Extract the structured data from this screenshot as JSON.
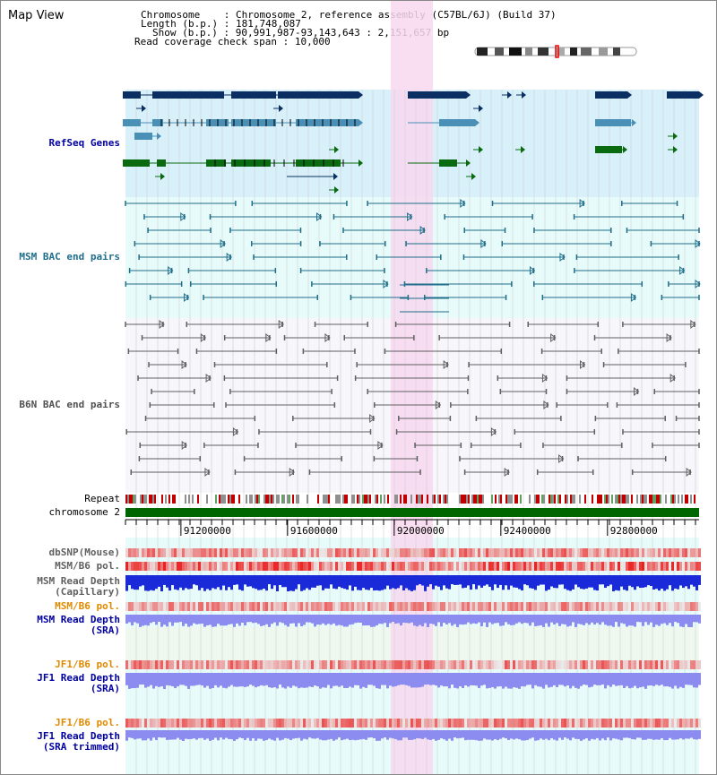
{
  "page_title": "Map View",
  "info": {
    "chromosome_label": "Chromosome",
    "chromosome_value": "Chromosome 2, reference assembly (C57BL/6J) (Build 37)",
    "length_label": "Length (b.p.)",
    "length_value": "181,748,087",
    "show_label": "Show (b.p.)",
    "show_value": "90,991,987-93,143,643 : 2,151,657 bp",
    "coverage_label": "Read coverage check span",
    "coverage_value": "10,000"
  },
  "tracks": {
    "refseq": "RefSeq Genes",
    "msm_bac": "MSM BAC end pairs",
    "b6n_bac": "B6N BAC end pairs",
    "repeat": "Repeat",
    "chromosome": "chromosome 2",
    "dbsnp": "dbSNP(Mouse)",
    "msm_b6_pol": "MSM/B6 pol.",
    "msm_depth_cap_1": "MSM Read Depth",
    "msm_depth_cap_2": "(Capillary)",
    "msm_b6_pol_2": "MSM/B6 pol.",
    "msm_depth_sra_1": "MSM Read Depth",
    "msm_depth_sra_2": "(SRA)",
    "jf1_b6_pol": "JF1/B6 pol.",
    "jf1_depth_sra_1": "JF1 Read Depth",
    "jf1_depth_sra_2": "(SRA)",
    "jf1_b6_pol_2": "JF1/B6 pol.",
    "jf1_depth_trim_1": "JF1 Read Depth",
    "jf1_depth_trim_2": "(SRA trimmed)"
  },
  "axis": {
    "ticks": [
      "91200000",
      "91600000",
      "92000000",
      "92400000",
      "92800000"
    ],
    "tick_values": [
      91200000,
      91600000,
      92000000,
      92400000,
      92800000
    ],
    "start": 90991987,
    "end": 93143643
  },
  "colors": {
    "refseq_bg": "#d8f0fa",
    "bac_bg": "#e8fbfb",
    "b6n_bg": "#f6f6fb",
    "highlight": "#f8d8f0",
    "gene_navy": "#0b2f63",
    "gene_teal": "#4a8fb5",
    "gene_green": "#0a6a10",
    "msm_pair": "#1f6e8a",
    "b6n_pair": "#606060",
    "chromosome": "#006600",
    "depth_dark": "#1a2ad8",
    "depth_light": "#8c8cf0",
    "pol_label": "#e08a00",
    "depth_label": "#0000a0"
  }
}
